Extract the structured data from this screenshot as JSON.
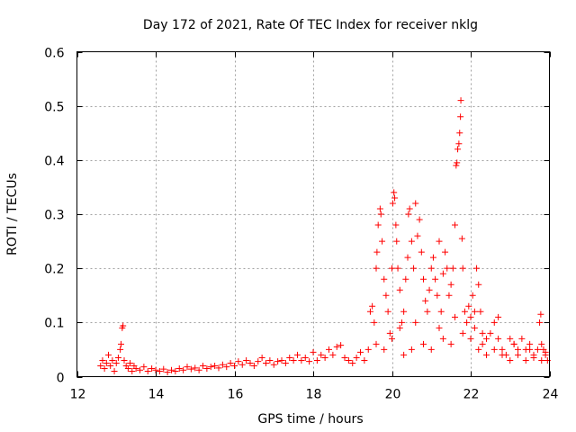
{
  "chart_data": {
    "type": "scatter",
    "title": "Day 172 of 2021, Rate Of TEC Index for receiver nklg",
    "xlabel": "GPS time / hours",
    "ylabel": "ROTI / TECUs",
    "xlim": [
      12,
      24
    ],
    "ylim": [
      0,
      0.6
    ],
    "x_ticks": [
      12,
      14,
      16,
      18,
      20,
      22,
      24
    ],
    "x_tick_labels": [
      "12",
      "14",
      "16",
      "18",
      "20",
      "22",
      "24"
    ],
    "y_ticks": [
      0,
      0.1,
      0.2,
      0.3,
      0.4,
      0.5,
      0.6
    ],
    "y_tick_labels": [
      "0",
      "0.1",
      "0.2",
      "0.3",
      "0.4",
      "0.5",
      "0.6"
    ],
    "grid": true,
    "marker": "plus",
    "color": "#ff0000",
    "series": [
      {
        "name": "ROTI",
        "points": [
          [
            12.6,
            0.02
          ],
          [
            12.65,
            0.03
          ],
          [
            12.7,
            0.015
          ],
          [
            12.75,
            0.025
          ],
          [
            12.8,
            0.04
          ],
          [
            12.85,
            0.02
          ],
          [
            12.9,
            0.03
          ],
          [
            12.95,
            0.01
          ],
          [
            13.0,
            0.025
          ],
          [
            13.05,
            0.035
          ],
          [
            13.1,
            0.05
          ],
          [
            13.12,
            0.06
          ],
          [
            13.15,
            0.09
          ],
          [
            13.17,
            0.094
          ],
          [
            13.2,
            0.03
          ],
          [
            13.25,
            0.02
          ],
          [
            13.3,
            0.015
          ],
          [
            13.35,
            0.025
          ],
          [
            13.4,
            0.01
          ],
          [
            13.45,
            0.02
          ],
          [
            13.5,
            0.015
          ],
          [
            13.6,
            0.012
          ],
          [
            13.7,
            0.018
          ],
          [
            13.8,
            0.01
          ],
          [
            13.9,
            0.015
          ],
          [
            14.0,
            0.012
          ],
          [
            14.1,
            0.01
          ],
          [
            14.2,
            0.014
          ],
          [
            14.3,
            0.008
          ],
          [
            14.4,
            0.012
          ],
          [
            14.5,
            0.01
          ],
          [
            14.6,
            0.015
          ],
          [
            14.7,
            0.012
          ],
          [
            14.8,
            0.018
          ],
          [
            14.9,
            0.014
          ],
          [
            15.0,
            0.016
          ],
          [
            15.1,
            0.012
          ],
          [
            15.2,
            0.02
          ],
          [
            15.3,
            0.015
          ],
          [
            15.4,
            0.018
          ],
          [
            15.5,
            0.02
          ],
          [
            15.6,
            0.016
          ],
          [
            15.7,
            0.022
          ],
          [
            15.8,
            0.018
          ],
          [
            15.9,
            0.025
          ],
          [
            16.0,
            0.02
          ],
          [
            16.1,
            0.028
          ],
          [
            16.2,
            0.022
          ],
          [
            16.3,
            0.03
          ],
          [
            16.4,
            0.025
          ],
          [
            16.5,
            0.02
          ],
          [
            16.6,
            0.028
          ],
          [
            16.7,
            0.035
          ],
          [
            16.8,
            0.025
          ],
          [
            16.9,
            0.03
          ],
          [
            17.0,
            0.022
          ],
          [
            17.1,
            0.028
          ],
          [
            17.2,
            0.03
          ],
          [
            17.3,
            0.025
          ],
          [
            17.4,
            0.035
          ],
          [
            17.5,
            0.03
          ],
          [
            17.6,
            0.04
          ],
          [
            17.7,
            0.03
          ],
          [
            17.8,
            0.035
          ],
          [
            17.9,
            0.028
          ],
          [
            18.0,
            0.045
          ],
          [
            18.1,
            0.03
          ],
          [
            18.2,
            0.04
          ],
          [
            18.3,
            0.035
          ],
          [
            18.4,
            0.05
          ],
          [
            18.5,
            0.04
          ],
          [
            18.6,
            0.055
          ],
          [
            18.7,
            0.058
          ],
          [
            18.8,
            0.035
          ],
          [
            18.9,
            0.03
          ],
          [
            19.0,
            0.025
          ],
          [
            19.1,
            0.035
          ],
          [
            19.2,
            0.045
          ],
          [
            19.3,
            0.03
          ],
          [
            19.4,
            0.05
          ],
          [
            19.45,
            0.12
          ],
          [
            19.5,
            0.13
          ],
          [
            19.55,
            0.1
          ],
          [
            19.6,
            0.2
          ],
          [
            19.62,
            0.23
          ],
          [
            19.65,
            0.28
          ],
          [
            19.7,
            0.31
          ],
          [
            19.72,
            0.3
          ],
          [
            19.75,
            0.25
          ],
          [
            19.8,
            0.18
          ],
          [
            19.85,
            0.15
          ],
          [
            19.9,
            0.12
          ],
          [
            19.95,
            0.08
          ],
          [
            20.0,
            0.2
          ],
          [
            20.02,
            0.32
          ],
          [
            20.05,
            0.34
          ],
          [
            20.07,
            0.33
          ],
          [
            20.1,
            0.28
          ],
          [
            20.12,
            0.25
          ],
          [
            20.15,
            0.2
          ],
          [
            20.2,
            0.16
          ],
          [
            20.25,
            0.1
          ],
          [
            20.3,
            0.12
          ],
          [
            20.35,
            0.18
          ],
          [
            20.4,
            0.22
          ],
          [
            20.42,
            0.3
          ],
          [
            20.45,
            0.31
          ],
          [
            20.5,
            0.25
          ],
          [
            20.55,
            0.2
          ],
          [
            20.6,
            0.32
          ],
          [
            20.65,
            0.26
          ],
          [
            20.7,
            0.29
          ],
          [
            20.75,
            0.23
          ],
          [
            20.8,
            0.18
          ],
          [
            20.85,
            0.14
          ],
          [
            20.9,
            0.12
          ],
          [
            20.95,
            0.16
          ],
          [
            21.0,
            0.2
          ],
          [
            21.05,
            0.22
          ],
          [
            21.1,
            0.18
          ],
          [
            21.15,
            0.15
          ],
          [
            21.2,
            0.25
          ],
          [
            21.25,
            0.12
          ],
          [
            21.3,
            0.19
          ],
          [
            21.35,
            0.23
          ],
          [
            21.4,
            0.2
          ],
          [
            21.45,
            0.15
          ],
          [
            21.5,
            0.17
          ],
          [
            21.55,
            0.2
          ],
          [
            21.6,
            0.28
          ],
          [
            21.63,
            0.39
          ],
          [
            21.65,
            0.395
          ],
          [
            21.67,
            0.42
          ],
          [
            21.7,
            0.43
          ],
          [
            21.72,
            0.45
          ],
          [
            21.74,
            0.48
          ],
          [
            21.75,
            0.51
          ],
          [
            21.78,
            0.255
          ],
          [
            21.8,
            0.2
          ],
          [
            21.85,
            0.12
          ],
          [
            21.9,
            0.1
          ],
          [
            21.95,
            0.13
          ],
          [
            22.0,
            0.11
          ],
          [
            22.05,
            0.15
          ],
          [
            22.1,
            0.12
          ],
          [
            22.15,
            0.2
          ],
          [
            22.2,
            0.17
          ],
          [
            22.25,
            0.12
          ],
          [
            22.3,
            0.06
          ],
          [
            22.4,
            0.07
          ],
          [
            22.5,
            0.08
          ],
          [
            22.6,
            0.1
          ],
          [
            22.7,
            0.11
          ],
          [
            22.8,
            0.05
          ],
          [
            22.9,
            0.04
          ],
          [
            23.0,
            0.07
          ],
          [
            23.1,
            0.06
          ],
          [
            23.2,
            0.05
          ],
          [
            23.3,
            0.07
          ],
          [
            23.4,
            0.05
          ],
          [
            23.5,
            0.06
          ],
          [
            23.6,
            0.04
          ],
          [
            23.7,
            0.05
          ],
          [
            23.75,
            0.1
          ],
          [
            23.78,
            0.115
          ],
          [
            23.8,
            0.06
          ],
          [
            23.85,
            0.05
          ],
          [
            23.9,
            0.04
          ],
          [
            23.95,
            0.03
          ],
          [
            20.3,
            0.04
          ],
          [
            20.5,
            0.05
          ],
          [
            20.8,
            0.06
          ],
          [
            21.0,
            0.05
          ],
          [
            21.3,
            0.07
          ],
          [
            21.5,
            0.06
          ],
          [
            21.8,
            0.08
          ],
          [
            22.0,
            0.07
          ],
          [
            22.2,
            0.05
          ],
          [
            22.4,
            0.04
          ],
          [
            22.6,
            0.05
          ],
          [
            22.8,
            0.04
          ],
          [
            23.0,
            0.03
          ],
          [
            23.2,
            0.04
          ],
          [
            23.4,
            0.03
          ],
          [
            23.6,
            0.035
          ],
          [
            23.8,
            0.03
          ],
          [
            19.6,
            0.06
          ],
          [
            19.8,
            0.05
          ],
          [
            20.0,
            0.07
          ],
          [
            20.2,
            0.09
          ],
          [
            20.6,
            0.1
          ],
          [
            21.2,
            0.09
          ],
          [
            21.6,
            0.11
          ],
          [
            22.1,
            0.09
          ],
          [
            22.3,
            0.08
          ],
          [
            22.7,
            0.07
          ],
          [
            23.1,
            0.06
          ],
          [
            23.5,
            0.05
          ],
          [
            23.9,
            0.045
          ]
        ]
      }
    ]
  }
}
